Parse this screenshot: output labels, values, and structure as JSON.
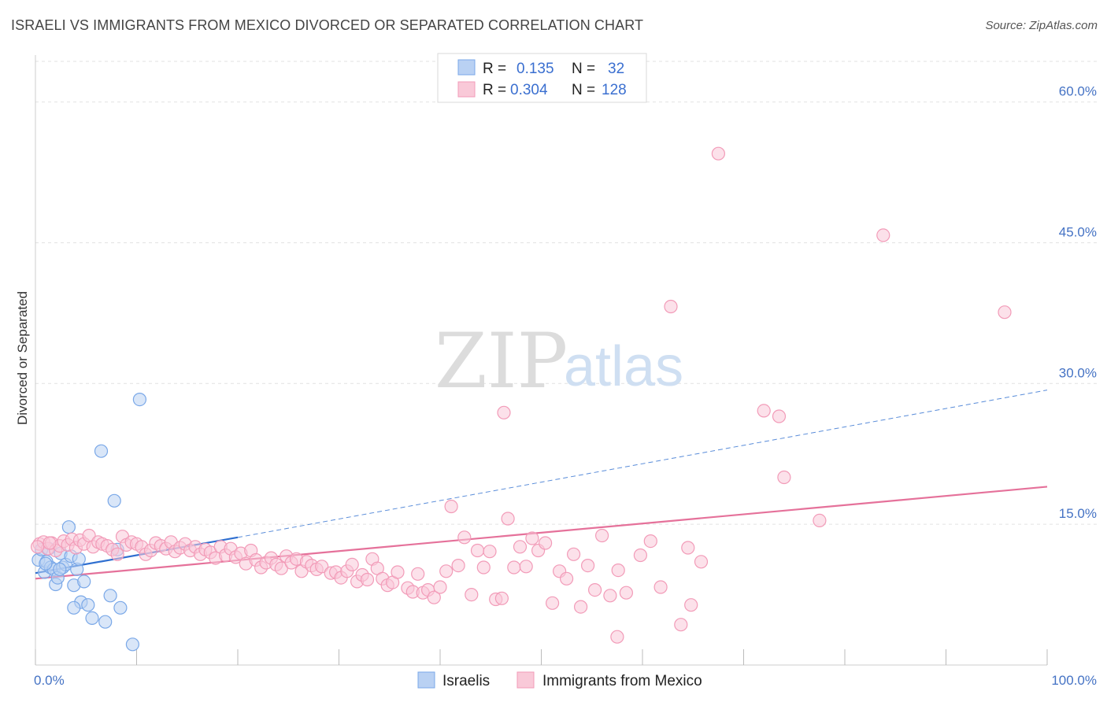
{
  "title": "ISRAELI VS IMMIGRANTS FROM MEXICO DIVORCED OR SEPARATED CORRELATION CHART",
  "source": "Source: ZipAtlas.com",
  "watermark": {
    "zip": "ZIP",
    "atlas": "atlas"
  },
  "legend": {
    "rows": [
      {
        "r_label": "R =",
        "r_value": "0.135",
        "n_label": "N =",
        "n_value": "32"
      },
      {
        "r_label": "R =",
        "r_value": "0.304",
        "n_label": "N =",
        "n_value": "128"
      }
    ]
  },
  "chart_data": {
    "type": "scatter",
    "xlabel": "",
    "ylabel": "Divorced or Separated",
    "xlim": [
      0,
      100
    ],
    "ylim": [
      0,
      65
    ],
    "x_tick_labels": [
      "0.0%",
      "100.0%"
    ],
    "y_ticks": [
      15,
      30,
      45,
      60
    ],
    "y_tick_labels": [
      "15.0%",
      "30.0%",
      "45.0%",
      "60.0%"
    ],
    "grid": true,
    "legend_position": "top-center",
    "series": [
      {
        "name": "Israelis",
        "color": "#7aa8e8",
        "fill": "#b9d1f3",
        "trend": {
          "x0": 0,
          "y0": 9.8,
          "x1": 20,
          "y1": 13.6,
          "dashed_to": 100,
          "dashed_y1": 29.3,
          "color": "#2f6fd0"
        },
        "points": [
          [
            0.3,
            11.2
          ],
          [
            0.6,
            12.3
          ],
          [
            0.9,
            9.9
          ],
          [
            1.1,
            11.0
          ],
          [
            1.3,
            12.4
          ],
          [
            1.5,
            10.4
          ],
          [
            1.8,
            10.2
          ],
          [
            2.0,
            8.6
          ],
          [
            2.2,
            9.3
          ],
          [
            2.5,
            11.9
          ],
          [
            2.7,
            10.4
          ],
          [
            3.0,
            10.7
          ],
          [
            3.3,
            14.7
          ],
          [
            3.5,
            11.6
          ],
          [
            3.8,
            8.5
          ],
          [
            4.1,
            10.2
          ],
          [
            4.3,
            11.3
          ],
          [
            4.5,
            6.7
          ],
          [
            4.8,
            8.9
          ],
          [
            5.2,
            6.4
          ],
          [
            5.6,
            5.0
          ],
          [
            6.5,
            22.8
          ],
          [
            6.9,
            4.6
          ],
          [
            7.4,
            7.4
          ],
          [
            7.8,
            17.5
          ],
          [
            8.1,
            12.3
          ],
          [
            8.4,
            6.1
          ],
          [
            9.6,
            2.2
          ],
          [
            10.3,
            28.3
          ],
          [
            3.8,
            6.1
          ],
          [
            1.0,
            10.8
          ],
          [
            2.4,
            10.2
          ]
        ]
      },
      {
        "name": "Immigrants from Mexico",
        "color": "#f29bb8",
        "fill": "#f9c9d8",
        "trend": {
          "x0": 0,
          "y0": 9.2,
          "x1": 100,
          "y1": 19.0,
          "color": "#e5719a"
        },
        "points": [
          [
            0.4,
            12.9
          ],
          [
            0.8,
            13.1
          ],
          [
            1.2,
            12.4
          ],
          [
            1.6,
            13.0
          ],
          [
            2.0,
            12.2
          ],
          [
            2.4,
            12.7
          ],
          [
            2.8,
            13.2
          ],
          [
            3.2,
            12.8
          ],
          [
            3.6,
            13.4
          ],
          [
            4.0,
            12.5
          ],
          [
            4.4,
            13.3
          ],
          [
            4.8,
            12.9
          ],
          [
            5.3,
            13.8
          ],
          [
            5.7,
            12.6
          ],
          [
            6.2,
            13.1
          ],
          [
            6.6,
            12.9
          ],
          [
            7.1,
            12.7
          ],
          [
            7.6,
            12.3
          ],
          [
            8.1,
            11.8
          ],
          [
            8.6,
            13.7
          ],
          [
            9.0,
            12.8
          ],
          [
            9.5,
            13.1
          ],
          [
            10.0,
            12.9
          ],
          [
            10.5,
            12.6
          ],
          [
            10.9,
            11.8
          ],
          [
            11.4,
            12.2
          ],
          [
            11.9,
            13.0
          ],
          [
            12.4,
            12.7
          ],
          [
            12.9,
            12.4
          ],
          [
            13.4,
            13.1
          ],
          [
            13.8,
            12.1
          ],
          [
            14.3,
            12.5
          ],
          [
            14.8,
            12.9
          ],
          [
            15.3,
            12.2
          ],
          [
            15.8,
            12.6
          ],
          [
            16.3,
            11.8
          ],
          [
            16.8,
            12.3
          ],
          [
            17.3,
            12.0
          ],
          [
            17.8,
            11.4
          ],
          [
            18.3,
            12.6
          ],
          [
            18.8,
            11.7
          ],
          [
            19.3,
            12.4
          ],
          [
            19.8,
            11.5
          ],
          [
            20.3,
            11.9
          ],
          [
            20.8,
            10.8
          ],
          [
            21.3,
            12.2
          ],
          [
            21.8,
            11.2
          ],
          [
            22.3,
            10.4
          ],
          [
            22.8,
            10.9
          ],
          [
            23.3,
            11.4
          ],
          [
            23.8,
            10.7
          ],
          [
            24.3,
            10.3
          ],
          [
            24.8,
            11.6
          ],
          [
            25.3,
            10.9
          ],
          [
            25.8,
            11.3
          ],
          [
            26.3,
            10.0
          ],
          [
            26.8,
            11.0
          ],
          [
            27.3,
            10.6
          ],
          [
            27.8,
            10.2
          ],
          [
            28.3,
            10.5
          ],
          [
            29.2,
            9.8
          ],
          [
            29.7,
            9.9
          ],
          [
            30.2,
            9.3
          ],
          [
            30.8,
            10.0
          ],
          [
            31.3,
            10.7
          ],
          [
            31.8,
            8.9
          ],
          [
            32.3,
            9.6
          ],
          [
            32.8,
            9.1
          ],
          [
            33.3,
            11.3
          ],
          [
            33.8,
            10.3
          ],
          [
            34.3,
            9.2
          ],
          [
            34.8,
            8.5
          ],
          [
            35.3,
            8.8
          ],
          [
            35.8,
            9.9
          ],
          [
            36.8,
            8.2
          ],
          [
            37.3,
            7.8
          ],
          [
            37.8,
            9.7
          ],
          [
            38.3,
            7.7
          ],
          [
            38.8,
            8.0
          ],
          [
            39.4,
            7.2
          ],
          [
            40.0,
            8.3
          ],
          [
            40.6,
            10.0
          ],
          [
            41.1,
            16.9
          ],
          [
            41.8,
            10.6
          ],
          [
            42.4,
            13.6
          ],
          [
            43.1,
            7.5
          ],
          [
            43.7,
            12.2
          ],
          [
            44.3,
            10.4
          ],
          [
            44.9,
            12.1
          ],
          [
            45.5,
            7.0
          ],
          [
            46.1,
            7.1
          ],
          [
            46.7,
            15.6
          ],
          [
            47.3,
            10.4
          ],
          [
            47.9,
            12.6
          ],
          [
            48.5,
            10.5
          ],
          [
            49.1,
            13.5
          ],
          [
            49.7,
            12.2
          ],
          [
            50.4,
            13.0
          ],
          [
            51.1,
            6.6
          ],
          [
            51.8,
            10.0
          ],
          [
            52.5,
            9.2
          ],
          [
            53.2,
            11.8
          ],
          [
            53.9,
            6.2
          ],
          [
            54.6,
            10.6
          ],
          [
            55.3,
            8.0
          ],
          [
            56.0,
            13.8
          ],
          [
            56.8,
            7.4
          ],
          [
            57.6,
            10.1
          ],
          [
            58.4,
            7.7
          ],
          [
            57.5,
            3.0
          ],
          [
            59.8,
            11.7
          ],
          [
            60.8,
            13.2
          ],
          [
            61.8,
            8.3
          ],
          [
            62.8,
            38.2
          ],
          [
            63.8,
            4.3
          ],
          [
            64.5,
            12.5
          ],
          [
            64.8,
            6.4
          ],
          [
            65.8,
            11.0
          ],
          [
            46.3,
            26.9
          ],
          [
            67.5,
            54.5
          ],
          [
            72.0,
            27.1
          ],
          [
            73.5,
            26.5
          ],
          [
            74.0,
            20.0
          ],
          [
            77.5,
            15.4
          ],
          [
            83.8,
            45.8
          ],
          [
            95.8,
            37.6
          ],
          [
            0.2,
            12.6
          ],
          [
            1.4,
            13.0
          ]
        ]
      }
    ]
  }
}
